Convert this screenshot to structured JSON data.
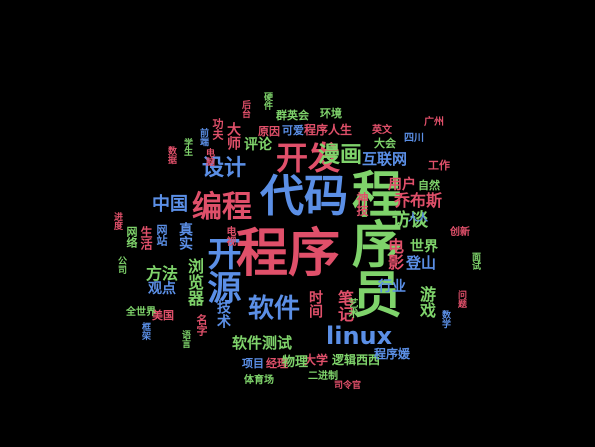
{
  "colors": {
    "background": "#000000",
    "red": "#e0506a",
    "blue": "#5b8fe6",
    "green": "#7fd36b",
    "pink": "#f07b8c",
    "gray": "#bfbfbf"
  },
  "words": {
    "chengxu": "程序",
    "chengxuyuan": "程序员",
    "daima": "代码",
    "kaifa": "开发",
    "biancheng": "编程",
    "kaiyuan": "开源",
    "sheji": "设计",
    "manhua": "漫画",
    "linux": "linux",
    "ruanjian": "软件",
    "zhongguo": "中国",
    "fangtan": "访谈",
    "qiaobusi": "乔布斯",
    "hulianwang": "互联网",
    "youxi": "游戏",
    "ruanjianceshi": "软件测试",
    "liulanqi": "浏览器",
    "fangfa": "方法",
    "dianying": "电影",
    "dengshan": "登山",
    "shijie": "世界",
    "hangye": "行业",
    "biji": "笔记",
    "shijian": "时间",
    "yonghu": "用户",
    "pinglun": "评论",
    "chengxurensheng": "程序人生",
    "keai": "可爱",
    "dashi": "大师",
    "guandian": "观点",
    "zhenshi": "真实",
    "jishu": "技术",
    "daxue": "大学",
    "luojiqisi": "逻辑西西",
    "chengxuyuanshort": "程序媛",
    "xiangmu": "项目",
    "jinglixianglu": "经理",
    "wuli": "物理",
    "shengming": "生活",
    "wangluo": "网络",
    "meiguo": "美国",
    "quanshijie": "全世界",
    "dahui": "大会",
    "yingwen": "英文",
    "shenqi": "神技",
    "dianshi": "电视",
    "yuanyin": "原因",
    "gongfu": "功夫",
    "qunying": "群英会",
    "huanjing": "环境",
    "gongzuo": "工作",
    "ziran": "自然",
    "chuangxin": "创新",
    "jiazhi": "价值",
    "mingzi": "名字",
    "jieguo": "经验",
    "yishu": "艺术",
    "renren": "人人",
    "wangzhan": "网站",
    "tiyu": "体育场",
    "erjinzhi": "二进制",
    "sishu": "司令官",
    "guangzhou": "广州",
    "sichuan": "四川",
    "jindu": "进度",
    "shujuku": "数据",
    "xuesheng": "学生",
    "qianduan": "前端",
    "houtai": "后台",
    "yingjian": "硬件",
    "dianlu": "电脑",
    "gongsi": "公司",
    "mianshi": "面试",
    "wenti": "问题",
    "shuxue": "数学",
    "yuyan": "语言",
    "kuangjia": "框架"
  }
}
